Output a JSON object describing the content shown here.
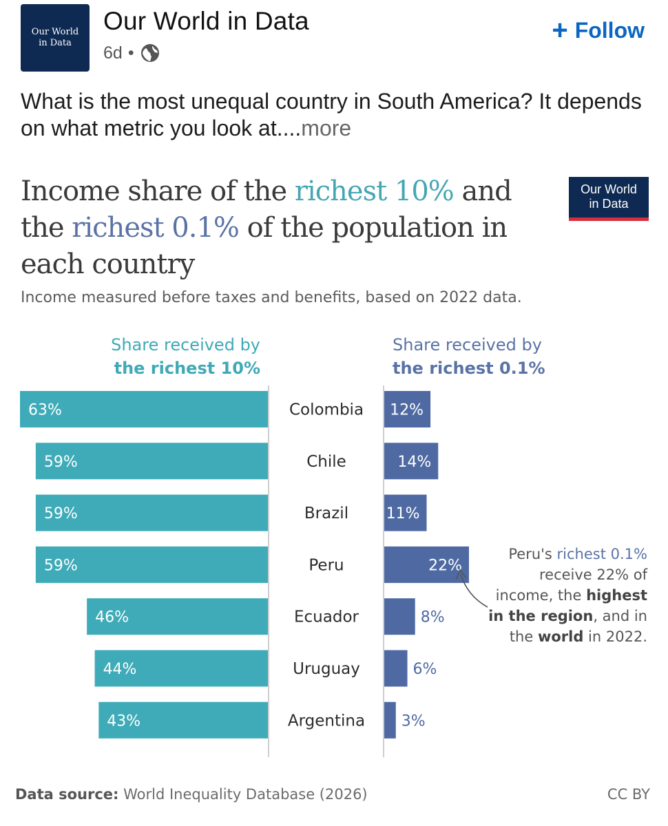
{
  "post": {
    "avatar_text": "Our World\nin Data",
    "author": "Our World in Data",
    "age": "6d",
    "separator": "•",
    "follow_label": "Follow",
    "text": "What is the most unequal country in South America? It depends on what metric you look at....",
    "more_label": "more"
  },
  "chart_header": {
    "title_part1": "Income share of the ",
    "title_highlight1": "richest 10%",
    "title_part2": " and the ",
    "title_highlight2": "richest 0.1%",
    "title_part3": " of the population in each country",
    "subtitle": "Income measured before taxes and benefits, based on 2022 data.",
    "logo_text": "Our World\nin Data",
    "left_head_line1": "Share received by",
    "left_head_line2": "the richest 10%",
    "right_head_line1": "Share received by",
    "right_head_line2": "the richest 0.1%"
  },
  "annotation": {
    "p1": "Peru's ",
    "h1": "richest 0.1%",
    "p2": " receive 22% of income, the ",
    "b1": "highest in the region",
    "p3": ", and in the ",
    "b2": "world",
    "p4": " in 2022."
  },
  "footer": {
    "source_label": "Data source:",
    "source": " World Inequality Database (2026)",
    "license": "CC BY"
  },
  "colors": {
    "teal": "#3fabb8",
    "blue": "#4f6aa3",
    "navy": "#0e2a52",
    "red": "#d62e3e"
  },
  "chart_data": {
    "type": "bar",
    "categories": [
      "Colombia",
      "Chile",
      "Brazil",
      "Peru",
      "Ecuador",
      "Uruguay",
      "Argentina"
    ],
    "series": [
      {
        "name": "Share received by the richest 10%",
        "values": [
          63,
          59,
          59,
          59,
          46,
          44,
          43
        ]
      },
      {
        "name": "Share received by the richest 0.1%",
        "values": [
          12,
          14,
          11,
          22,
          8,
          6,
          3
        ]
      }
    ],
    "value_suffix": "%",
    "title": "Income share of the richest 10% and the richest 0.1% of the population in each country",
    "subtitle": "Income measured before taxes and benefits, based on 2022 data."
  }
}
